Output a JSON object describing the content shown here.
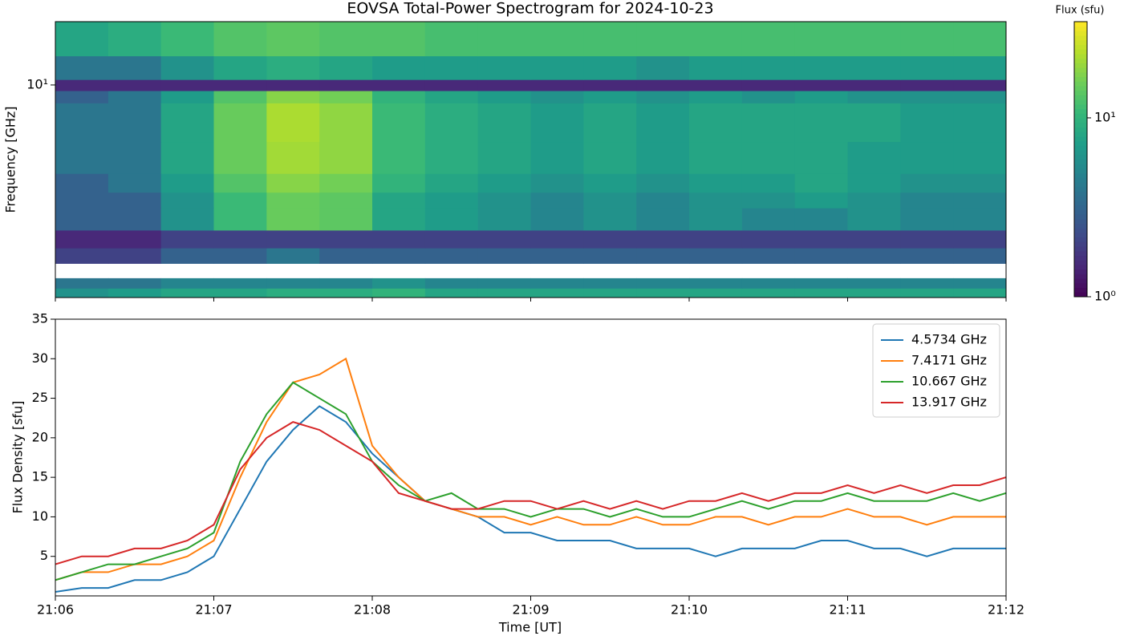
{
  "chart_data": [
    {
      "type": "heatmap",
      "title": "EOVSA Total-Power Spectrogram for 2024-10-23",
      "ylabel": "Frequency [GHz]",
      "log_y": true,
      "xlim": [
        "21:06:00",
        "21:12:00"
      ],
      "xticks": [
        "21:06",
        "21:07",
        "21:08",
        "21:09",
        "21:10",
        "21:11",
        "21:12"
      ],
      "ylim": [
        1.47,
        17.7
      ],
      "yticks": [
        {
          "value": 10,
          "label": "10¹"
        }
      ],
      "time_bins": [
        "21:06:00",
        "21:06:20",
        "21:06:40",
        "21:07:00",
        "21:07:20",
        "21:07:40",
        "21:08:00",
        "21:08:20",
        "21:08:40",
        "21:09:00",
        "21:09:20",
        "21:09:40",
        "21:10:00",
        "21:10:20",
        "21:10:40",
        "21:11:00",
        "21:11:20",
        "21:11:40",
        "21:12:00"
      ],
      "frequency_bins": [
        1.47,
        1.6,
        1.75,
        2.0,
        2.3,
        2.7,
        3.3,
        3.8,
        4.5,
        6,
        8.5,
        9.5,
        10.5,
        13,
        17.7
      ],
      "values": [
        [
          6,
          7,
          8,
          8,
          9,
          9,
          10,
          8,
          8,
          8,
          8,
          8,
          8,
          8,
          8,
          8,
          8,
          8
        ],
        [
          4,
          4,
          5,
          5,
          5,
          5,
          6,
          5,
          5,
          5,
          5,
          5,
          5,
          5,
          5,
          5,
          5,
          5
        ],
        [
          null,
          null,
          null,
          null,
          null,
          null,
          null,
          null,
          null,
          null,
          null,
          null,
          null,
          null,
          null,
          null,
          null,
          null
        ],
        [
          2,
          2,
          3,
          3,
          4,
          3,
          3,
          3,
          3,
          3,
          3,
          3,
          3,
          3,
          3,
          3,
          3,
          3
        ],
        [
          1.5,
          1.5,
          2,
          2,
          2,
          2,
          2,
          2,
          2,
          2,
          2,
          2,
          2,
          2,
          2,
          2,
          2,
          2
        ],
        [
          3,
          3,
          6,
          11,
          15,
          14,
          8,
          7,
          6,
          5,
          6,
          5,
          6,
          5,
          5,
          6,
          5,
          5
        ],
        [
          3,
          3,
          6,
          11,
          15,
          14,
          8,
          7,
          6,
          5,
          6,
          5,
          6,
          6,
          7,
          6,
          5,
          5
        ],
        [
          3,
          4,
          7,
          13,
          18,
          16,
          10,
          8,
          7,
          6,
          7,
          6,
          7,
          7,
          8,
          7,
          6,
          6
        ],
        [
          4,
          4,
          8,
          15,
          21,
          19,
          11,
          9,
          8,
          7,
          8,
          7,
          8,
          8,
          8,
          7,
          7,
          7
        ],
        [
          4,
          4,
          8,
          15,
          22,
          19,
          11,
          9,
          8,
          7,
          8,
          7,
          8,
          8,
          8,
          8,
          7,
          7
        ],
        [
          3,
          4,
          7,
          13,
          18,
          16,
          10,
          8,
          7,
          6,
          7,
          6,
          7,
          6,
          7,
          6,
          6,
          6
        ],
        [
          1.5,
          1.5,
          1.5,
          1.5,
          1.5,
          1.5,
          1.5,
          1.5,
          1.5,
          1.5,
          1.5,
          1.5,
          1.5,
          1.5,
          1.5,
          1.5,
          1.5,
          1.5
        ],
        [
          4,
          4,
          6,
          8,
          9,
          8,
          7,
          7,
          7,
          7,
          7,
          6,
          7,
          7,
          7,
          7,
          7,
          7
        ],
        [
          8,
          9,
          11,
          13,
          14,
          13,
          13,
          12,
          12,
          12,
          12,
          12,
          12,
          12,
          12,
          12,
          12,
          12
        ]
      ],
      "colorbar": {
        "label": "Flux (sfu)",
        "colormap": "viridis",
        "log": true,
        "lim": [
          1,
          34.5
        ],
        "ticks": [
          {
            "value": 1,
            "label": "10⁰"
          },
          {
            "value": 10,
            "label": "10¹"
          }
        ]
      }
    },
    {
      "type": "line",
      "xlabel": "Time [UT]",
      "ylabel": "Flux Density [sfu]",
      "xlim": [
        "21:06:00",
        "21:12:00"
      ],
      "xticks": [
        "21:06",
        "21:07",
        "21:08",
        "21:09",
        "21:10",
        "21:11",
        "21:12"
      ],
      "ylim": [
        0,
        35
      ],
      "yticks": [
        5,
        10,
        15,
        20,
        25,
        30,
        35
      ],
      "legend": "upper right",
      "x": [
        "21:06:00",
        "21:06:10",
        "21:06:20",
        "21:06:30",
        "21:06:40",
        "21:06:50",
        "21:07:00",
        "21:07:10",
        "21:07:20",
        "21:07:30",
        "21:07:40",
        "21:07:50",
        "21:08:00",
        "21:08:10",
        "21:08:20",
        "21:08:30",
        "21:08:40",
        "21:08:50",
        "21:09:00",
        "21:09:10",
        "21:09:20",
        "21:09:30",
        "21:09:40",
        "21:09:50",
        "21:10:00",
        "21:10:10",
        "21:10:20",
        "21:10:30",
        "21:10:40",
        "21:10:50",
        "21:11:00",
        "21:11:10",
        "21:11:20",
        "21:11:30",
        "21:11:40",
        "21:11:50",
        "21:12:00"
      ],
      "series": [
        {
          "name": "4.5734 GHz",
          "color": "#1f77b4",
          "values": [
            0.5,
            1,
            1,
            2,
            2,
            3,
            5,
            11,
            17,
            21,
            24,
            22,
            18,
            15,
            12,
            11,
            10,
            8,
            8,
            7,
            7,
            7,
            6,
            6,
            6,
            5,
            6,
            6,
            6,
            7,
            7,
            6,
            6,
            5,
            6,
            6,
            6
          ]
        },
        {
          "name": "7.4171 GHz",
          "color": "#ff7f0e",
          "values": [
            2,
            3,
            3,
            4,
            4,
            5,
            7,
            15,
            22,
            27,
            28,
            30,
            19,
            15,
            12,
            11,
            10,
            10,
            9,
            10,
            9,
            9,
            10,
            9,
            9,
            10,
            10,
            9,
            10,
            10,
            11,
            10,
            10,
            9,
            10,
            10,
            10
          ]
        },
        {
          "name": "10.667 GHz",
          "color": "#2ca02c",
          "values": [
            2,
            3,
            4,
            4,
            5,
            6,
            8,
            17,
            23,
            27,
            25,
            23,
            17,
            14,
            12,
            13,
            11,
            11,
            10,
            11,
            11,
            10,
            11,
            10,
            10,
            11,
            12,
            11,
            12,
            12,
            13,
            12,
            12,
            12,
            13,
            12,
            13
          ]
        },
        {
          "name": "13.917 GHz",
          "color": "#d62728",
          "values": [
            4,
            5,
            5,
            6,
            6,
            7,
            9,
            16,
            20,
            22,
            21,
            19,
            17,
            13,
            12,
            11,
            11,
            12,
            12,
            11,
            12,
            11,
            12,
            11,
            12,
            12,
            13,
            12,
            13,
            13,
            14,
            13,
            14,
            13,
            14,
            14,
            15
          ]
        }
      ]
    }
  ]
}
